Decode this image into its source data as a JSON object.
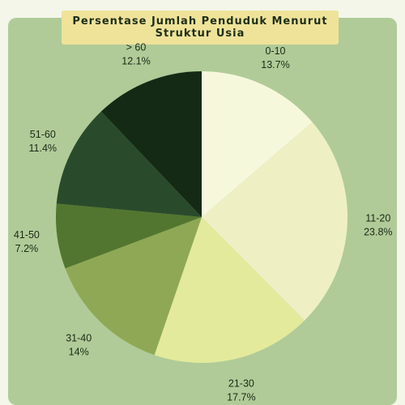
{
  "chart_data": {
    "type": "pie",
    "title": "Persentase Jumlah Penduduk Menurut Struktur Usia",
    "slices": [
      {
        "label": "0-10",
        "value": 13.7,
        "value_label": "13.7%",
        "color": "#f6f8dc"
      },
      {
        "label": "11-20",
        "value": 23.8,
        "value_label": "23.8%",
        "color": "#eef0c4"
      },
      {
        "label": "21-30",
        "value": 17.7,
        "value_label": "17.7%",
        "color": "#e3ea9c"
      },
      {
        "label": "31-40",
        "value": 14,
        "value_label": "14%",
        "color": "#8fa855"
      },
      {
        "label": "41-50",
        "value": 7.2,
        "value_label": "7.2%",
        "color": "#52762f"
      },
      {
        "label": "51-60",
        "value": 11.4,
        "value_label": "11.4%",
        "color": "#2a4b2b"
      },
      {
        "label": "> 60",
        "value": 12.1,
        "value_label": "12.1%",
        "color": "#142a14"
      }
    ],
    "start": "12 o'clock",
    "direction": "clockwise",
    "legend": "none"
  },
  "colors": {
    "background": "#f3f6e9",
    "panel": "#b0cb98",
    "title_box": "#efe39a",
    "text": "#1d2a16"
  }
}
